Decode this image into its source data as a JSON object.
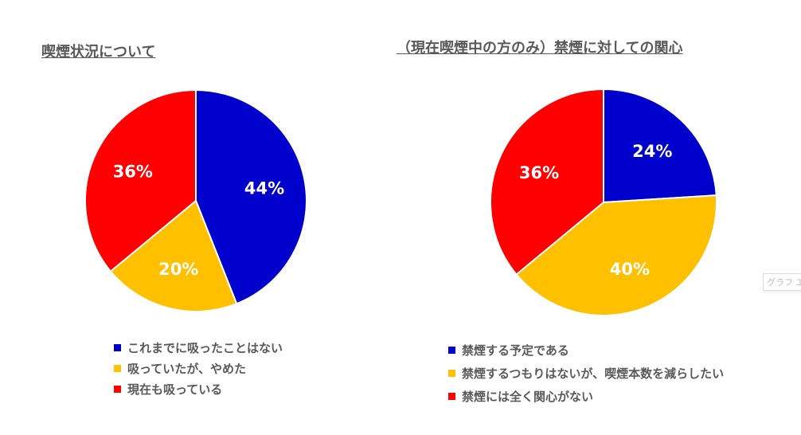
{
  "colors": {
    "blue": "#0000CC",
    "yellow": "#FFC000",
    "red": "#FF0000"
  },
  "chart_data": [
    {
      "type": "pie",
      "title": "喫煙状況について",
      "categories": [
        "これまでに吸ったことはない",
        "吸っていたが、やめた",
        "現在も吸っている"
      ],
      "values": [
        44,
        20,
        36
      ],
      "labels": [
        "44%",
        "20%",
        "36%"
      ],
      "legend": "bottom"
    },
    {
      "type": "pie",
      "title": "（現在喫煙中の方のみ）禁煙に対しての関心",
      "categories": [
        "禁煙する予定である",
        "禁煙するつもりはないが、喫煙本数を減らしたい",
        "禁煙には全く関心がない"
      ],
      "values": [
        24,
        40,
        36
      ],
      "labels": [
        "24%",
        "40%",
        "36%"
      ],
      "legend": "bottom"
    }
  ],
  "tooltip": "グラフ エリア"
}
